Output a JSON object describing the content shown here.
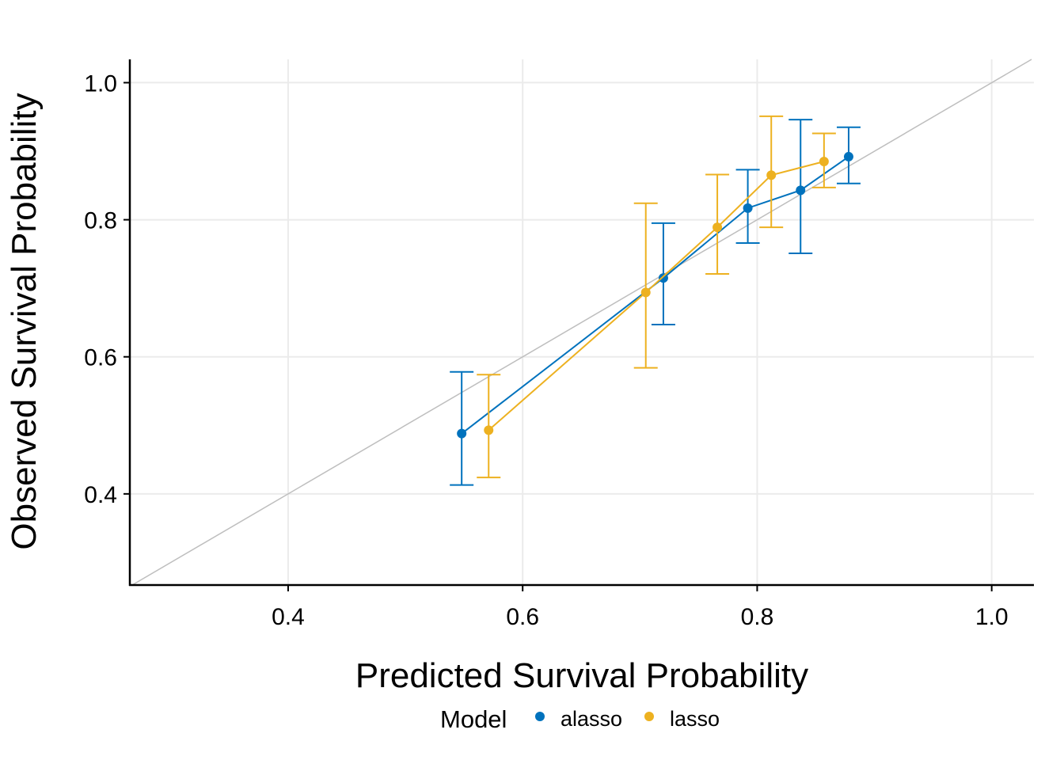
{
  "chart_data": {
    "type": "line",
    "title": "",
    "xlabel": "Predicted Survival Probability",
    "ylabel": "Observed Survival Probability",
    "xlim": [
      0.265,
      1.036
    ],
    "ylim": [
      0.267,
      1.034
    ],
    "x_ticks": [
      0.4,
      0.6,
      0.8,
      1.0
    ],
    "x_tick_labels": [
      "0.4",
      "0.6",
      "0.8",
      "1.0"
    ],
    "y_ticks": [
      0.4,
      0.6,
      0.8,
      1.0
    ],
    "y_tick_labels": [
      "0.4",
      "0.6",
      "0.8",
      "1.0"
    ],
    "grid": true,
    "reference_line": "y = x",
    "reference_color": "#bebebe",
    "legend": {
      "title": "Model",
      "position": "bottom"
    },
    "series": [
      {
        "name": "alasso",
        "color": "#0072BD",
        "x": [
          0.548,
          0.72,
          0.792,
          0.837,
          0.878
        ],
        "y": [
          0.488,
          0.715,
          0.817,
          0.843,
          0.892
        ],
        "lower": [
          0.413,
          0.647,
          0.766,
          0.751,
          0.853
        ],
        "upper": [
          0.578,
          0.795,
          0.873,
          0.946,
          0.935
        ]
      },
      {
        "name": "lasso",
        "color": "#EDB120",
        "x": [
          0.571,
          0.705,
          0.766,
          0.812,
          0.857
        ],
        "y": [
          0.493,
          0.694,
          0.789,
          0.865,
          0.885
        ],
        "lower": [
          0.424,
          0.584,
          0.721,
          0.789,
          0.847
        ],
        "upper": [
          0.574,
          0.824,
          0.866,
          0.951,
          0.926
        ]
      }
    ]
  }
}
